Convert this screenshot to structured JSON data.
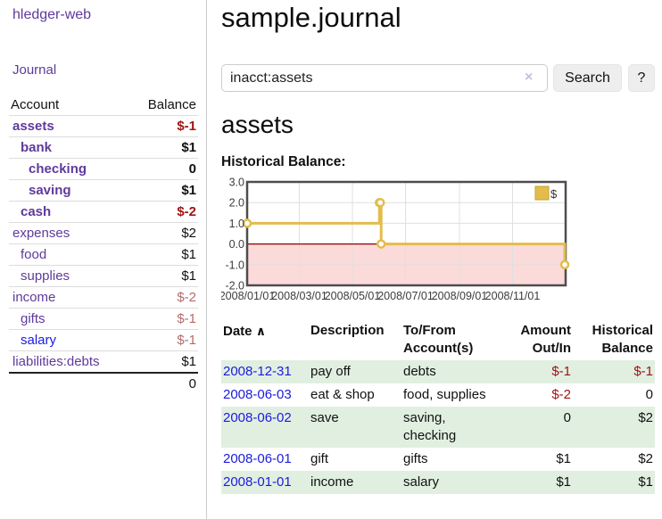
{
  "app": {
    "brand": "hledger-web"
  },
  "sidebar": {
    "journal_link": "Journal",
    "accounts_table": {
      "headers": [
        "Account",
        "Balance"
      ],
      "rows": [
        {
          "account": "assets",
          "depth": 0,
          "bold": true,
          "balance": "$-1"
        },
        {
          "account": "bank",
          "depth": 1,
          "bold": true,
          "balance": "$1"
        },
        {
          "account": "checking",
          "depth": 2,
          "bold": true,
          "balance": "0"
        },
        {
          "account": "saving",
          "depth": 2,
          "bold": true,
          "balance": "$1"
        },
        {
          "account": "cash",
          "depth": 1,
          "bold": true,
          "balance": "$-2"
        },
        {
          "account": "expenses",
          "depth": 0,
          "bold": false,
          "balance": "$2"
        },
        {
          "account": "food",
          "depth": 1,
          "bold": false,
          "balance": "$1"
        },
        {
          "account": "supplies",
          "depth": 1,
          "bold": false,
          "balance": "$1"
        },
        {
          "account": "income",
          "depth": 0,
          "bold": false,
          "balance": "$-2"
        },
        {
          "account": "gifts",
          "depth": 1,
          "bold": false,
          "balance": "$-1"
        },
        {
          "account": "salary",
          "depth": 1,
          "bold": false,
          "balance": "$-1",
          "link_style": "blue"
        },
        {
          "account": "liabilities:debts",
          "depth": 0,
          "bold": false,
          "balance": "$1"
        }
      ],
      "total": "0"
    }
  },
  "main": {
    "title": "sample.journal",
    "search": {
      "value": "inacct:assets",
      "clear_icon": "×",
      "button_label": "Search",
      "help_label": "?"
    },
    "account_heading": "assets",
    "chart_label": "Historical Balance:"
  },
  "chart_data": {
    "type": "line",
    "subtype": "step-after",
    "title": "Historical Balance",
    "series": [
      {
        "name": "$",
        "points_day_value": [
          [
            0,
            1
          ],
          [
            152,
            2
          ],
          [
            153,
            2
          ],
          [
            154,
            0
          ],
          [
            365,
            -1
          ]
        ]
      }
    ],
    "x_domain_days": [
      0,
      366
    ],
    "x_ticks": [
      {
        "day": 0,
        "label": "2008/01/01"
      },
      {
        "day": 60,
        "label": "2008/03/01"
      },
      {
        "day": 121,
        "label": "2008/05/01"
      },
      {
        "day": 182,
        "label": "2008/07/01"
      },
      {
        "day": 244,
        "label": "2008/09/01"
      },
      {
        "day": 305,
        "label": "2008/11/01"
      }
    ],
    "ylim": [
      -2,
      3
    ],
    "y_ticks": [
      3,
      2,
      1,
      0,
      -1,
      -2
    ],
    "y_tick_labels": [
      "3.0",
      "2.0",
      "1.0",
      "0.0",
      "-1.0",
      "-2.0"
    ],
    "grid": true,
    "negative_region_shaded": true,
    "legend": {
      "label": "$",
      "position": "top-right"
    },
    "colors": {
      "line": "#e2bd4d",
      "marker_fill": "#ffffff",
      "negative_fill": "#fbdada",
      "zero_line": "#960000",
      "border": "#4d4d4d",
      "grid": "#e0e0e0",
      "tick_text": "#3c3c3c"
    }
  },
  "register": {
    "headers": [
      "Date",
      "Description",
      "To/From Account(s)",
      "Amount Out/In",
      "Historical Balance"
    ],
    "sort_icon": "∧",
    "rows": [
      {
        "date": "2008-12-31",
        "description": "pay off",
        "accounts": "debts",
        "amount": "$-1",
        "balance": "$-1"
      },
      {
        "date": "2008-06-03",
        "description": "eat & shop",
        "accounts": "food, supplies",
        "amount": "$-2",
        "balance": "0"
      },
      {
        "date": "2008-06-02",
        "description": "save",
        "accounts": "saving, checking",
        "amount": "0",
        "balance": "$2"
      },
      {
        "date": "2008-06-01",
        "description": "gift",
        "accounts": "gifts",
        "amount": "$1",
        "balance": "$2"
      },
      {
        "date": "2008-01-01",
        "description": "income",
        "accounts": "salary",
        "amount": "$1",
        "balance": "$1"
      }
    ]
  }
}
